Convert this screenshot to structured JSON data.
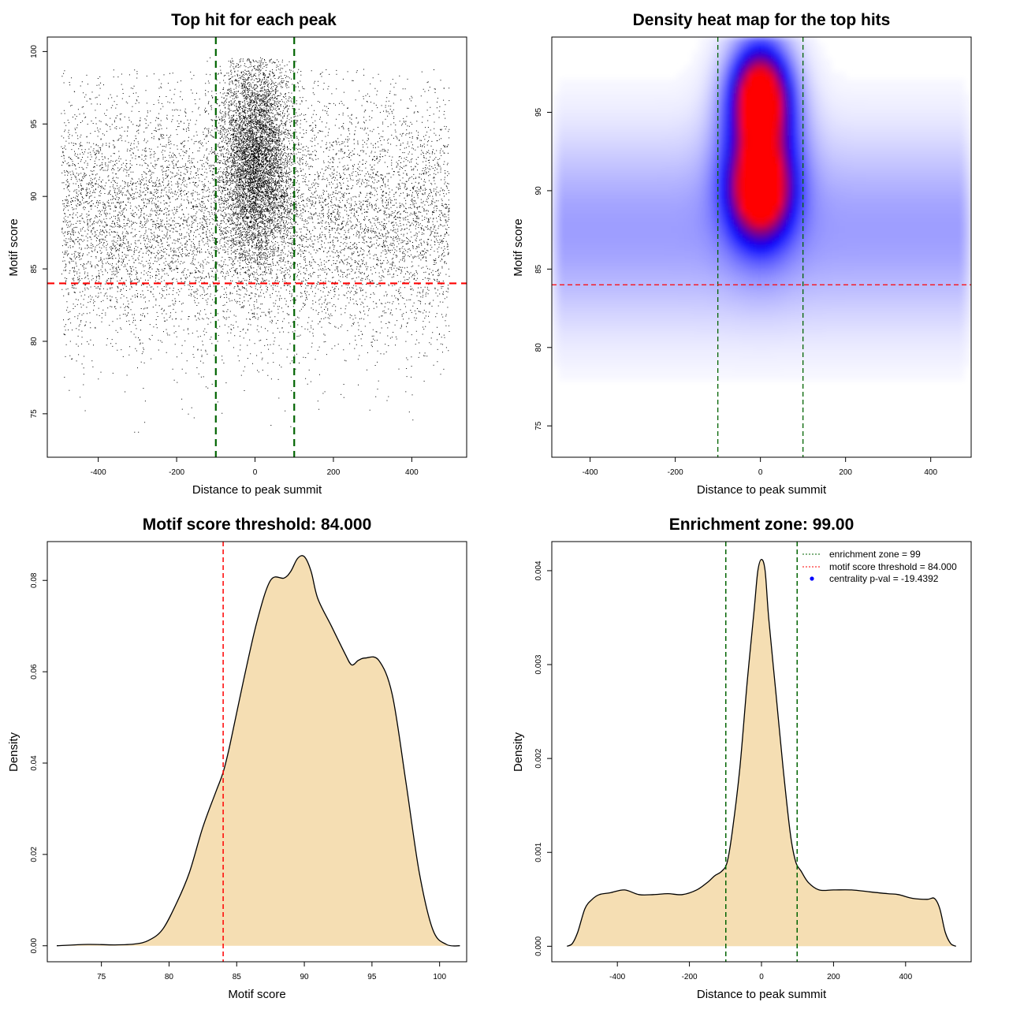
{
  "chart_data": [
    {
      "type": "scatter",
      "title": "Top hit for each peak",
      "xlabel": "Distance to peak summit",
      "ylabel": "Motif score",
      "xlim": [
        -530,
        540
      ],
      "ylim": [
        72,
        101
      ],
      "xticks": [
        -400,
        -200,
        0,
        200,
        400
      ],
      "yticks": [
        75,
        80,
        85,
        90,
        95,
        100
      ],
      "grid": false,
      "reference_lines": {
        "vertical": [
          -100,
          100
        ],
        "vertical_color": "#006400",
        "horizontal": [
          84
        ],
        "horizontal_color": "#ff0000"
      },
      "point_color": "#000000",
      "point_groups": [
        {
          "x_range": [
            -495,
            495
          ],
          "y_mean": 88.5,
          "y_sd": 4.3,
          "approx_count": 9000,
          "description": "background hits spread across window"
        },
        {
          "x_range": [
            -130,
            130
          ],
          "x_mean": 0,
          "x_sd": 45,
          "y_mean": 92.5,
          "y_sd": 3.6,
          "approx_count": 6000,
          "description": "hits concentrated near summit"
        }
      ]
    },
    {
      "type": "heatmap",
      "title": "Density heat map for the top hits",
      "xlabel": "Distance to peak summit",
      "ylabel": "Motif score",
      "xlim": [
        -490,
        495
      ],
      "ylim": [
        73,
        99.8
      ],
      "xticks": [
        -400,
        -200,
        0,
        200,
        400
      ],
      "yticks": [
        75,
        80,
        85,
        90,
        95
      ],
      "grid": false,
      "colorscale": [
        "#ffffff",
        "#0000ff",
        "#ff0000"
      ],
      "reference_lines": {
        "vertical": [
          -100,
          100
        ],
        "vertical_color": "#006400",
        "horizontal": [
          84
        ],
        "horizontal_color": "#ff0000"
      },
      "density_peaks": [
        {
          "x": 0,
          "y": 96,
          "level": "high"
        },
        {
          "x": 0,
          "y": 90,
          "level": "high"
        },
        {
          "x": -400,
          "y": 87,
          "level": "low"
        },
        {
          "x": 350,
          "y": 87,
          "level": "low"
        }
      ]
    },
    {
      "type": "area",
      "title": "Motif score threshold: 84.000",
      "xlabel": "Motif score",
      "ylabel": "Density",
      "xlim": [
        71,
        102
      ],
      "ylim": [
        -0.0035,
        0.0885
      ],
      "xticks": [
        75,
        80,
        85,
        90,
        95,
        100
      ],
      "yticks": [
        0.0,
        0.02,
        0.04,
        0.06,
        0.08
      ],
      "ytick_labels": [
        "0.00",
        "0.02",
        "0.04",
        "0.06",
        "0.08"
      ],
      "grid": false,
      "fill_color": "#f5deb3",
      "reference_lines": {
        "vertical": [
          84
        ],
        "vertical_color": "#ff0000"
      },
      "x": [
        71.7,
        74,
        76,
        77.5,
        78.5,
        79.5,
        80.5,
        81.5,
        82.5,
        83.5,
        84,
        84.5,
        85.5,
        86.5,
        87.5,
        88.5,
        89,
        89.5,
        90,
        90.5,
        91,
        92,
        93,
        93.5,
        94,
        94.5,
        95.5,
        96.5,
        97.5,
        98.5,
        99.5,
        100.5,
        101.5
      ],
      "y": [
        0.0,
        0.0003,
        0.0002,
        0.0004,
        0.0012,
        0.0035,
        0.009,
        0.016,
        0.026,
        0.034,
        0.038,
        0.044,
        0.058,
        0.071,
        0.08,
        0.0805,
        0.082,
        0.0848,
        0.0852,
        0.082,
        0.076,
        0.07,
        0.064,
        0.0615,
        0.0625,
        0.063,
        0.0625,
        0.055,
        0.036,
        0.016,
        0.0035,
        0.0003,
        0.0
      ]
    },
    {
      "type": "area",
      "title": "Enrichment zone: 99.00",
      "xlabel": "Distance to peak summit",
      "ylabel": "Density",
      "xlim": [
        -582,
        582
      ],
      "ylim": [
        -0.000165,
        0.00431
      ],
      "xticks": [
        -400,
        -200,
        0,
        200,
        400
      ],
      "yticks": [
        0.0,
        0.001,
        0.002,
        0.003,
        0.004
      ],
      "ytick_labels": [
        "0.000",
        "0.001",
        "0.002",
        "0.003",
        "0.004"
      ],
      "grid": false,
      "fill_color": "#f5deb3",
      "reference_lines": {
        "vertical": [
          -99,
          99
        ],
        "vertical_color": "#006400"
      },
      "x": [
        -540,
        -525,
        -510,
        -490,
        -470,
        -450,
        -420,
        -380,
        -340,
        -300,
        -260,
        -220,
        -180,
        -150,
        -130,
        -110,
        -95,
        -80,
        -60,
        -40,
        -20,
        -10,
        0,
        10,
        20,
        40,
        60,
        80,
        95,
        110,
        130,
        160,
        200,
        250,
        300,
        350,
        380,
        420,
        460,
        480,
        495,
        510,
        525,
        540
      ],
      "y": [
        0.0,
        3e-05,
        0.00015,
        0.0004,
        0.0005,
        0.00055,
        0.00057,
        0.0006,
        0.00055,
        0.00055,
        0.00056,
        0.00055,
        0.0006,
        0.00068,
        0.00075,
        0.0008,
        0.0009,
        0.00125,
        0.0019,
        0.0028,
        0.0036,
        0.004,
        0.00412,
        0.004,
        0.0035,
        0.0027,
        0.0019,
        0.0012,
        0.0009,
        0.0008,
        0.00068,
        0.0006,
        0.0006,
        0.0006,
        0.00058,
        0.00056,
        0.00055,
        0.00051,
        0.0005,
        0.00051,
        0.0004,
        0.00015,
        3e-05,
        0.0
      ],
      "legend": {
        "position": "top-right",
        "items": [
          {
            "label": "enrichment zone = 99",
            "color": "#006400",
            "style": "dotted-line"
          },
          {
            "label": "motif score threshold = 84.000",
            "color": "#ff0000",
            "style": "dotted-line"
          },
          {
            "label": "centrality p-val = -19.4392",
            "color": "#0000ff",
            "style": "point"
          }
        ]
      }
    }
  ]
}
